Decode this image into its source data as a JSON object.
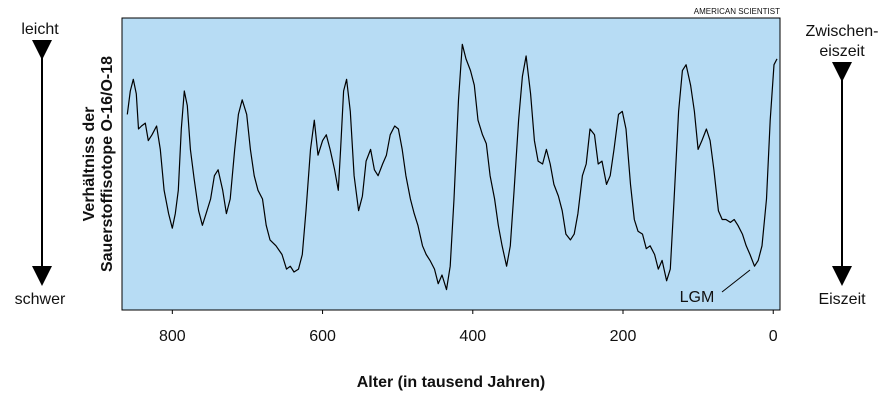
{
  "chart_data": {
    "type": "line",
    "source": "AMERICAN SCIENTIST",
    "ylabel": [
      "Verhältniss der",
      "Sauerstoffisotope O-16/O-18"
    ],
    "xlabel": "Alter (in tausend Jahren)",
    "annotations": [
      "leicht",
      "schwer",
      "Zwischen-",
      "eiszeit",
      "Eiszeit",
      "LGM"
    ],
    "xlim": [
      867,
      -9
    ],
    "xticks": [
      800,
      600,
      400,
      200,
      0
    ],
    "ylim": [
      0,
      100
    ],
    "background": "#b7dcf4",
    "series": [
      {
        "color": "#000000",
        "x": [
          860,
          856,
          852,
          848,
          845,
          841,
          836,
          832,
          827,
          821,
          816,
          811,
          805,
          800,
          796,
          792,
          788,
          784,
          780,
          776,
          771,
          765,
          760,
          755,
          749,
          744,
          739,
          733,
          728,
          723,
          717,
          712,
          707,
          701,
          696,
          691,
          686,
          680,
          675,
          670,
          662,
          654,
          648,
          643,
          638,
          632,
          627,
          622,
          616,
          611,
          606,
          600,
          595,
          590,
          584,
          579,
          576,
          572,
          568,
          563,
          558,
          552,
          547,
          542,
          536,
          531,
          526,
          520,
          515,
          510,
          504,
          499,
          494,
          489,
          483,
          478,
          473,
          467,
          462,
          457,
          451,
          446,
          441,
          435,
          430,
          425,
          419,
          414,
          409,
          403,
          398,
          393,
          387,
          382,
          377,
          371,
          366,
          361,
          355,
          350,
          345,
          339,
          334,
          329,
          323,
          318,
          313,
          307,
          302,
          297,
          292,
          286,
          281,
          276,
          270,
          265,
          260,
          254,
          249,
          244,
          238,
          233,
          228,
          222,
          217,
          212,
          206,
          201,
          196,
          190,
          185,
          180,
          174,
          169,
          164,
          158,
          153,
          148,
          142,
          137,
          132,
          126,
          121,
          116,
          110,
          105,
          100,
          95,
          89,
          84,
          79,
          73,
          68,
          63,
          57,
          52,
          47,
          41,
          36,
          31,
          25,
          20,
          15,
          9,
          4,
          -1,
          -5
        ],
        "values": [
          67,
          75,
          79,
          74,
          62,
          63,
          64,
          58,
          60,
          63,
          55,
          41,
          33,
          28,
          33,
          41,
          62,
          75,
          70,
          55,
          45,
          34,
          29,
          33,
          38,
          46,
          48,
          41,
          33,
          38,
          55,
          67,
          72,
          67,
          55,
          46,
          41,
          38,
          29,
          24,
          22,
          19,
          14,
          15,
          13,
          14,
          19,
          34,
          55,
          65,
          53,
          58,
          60,
          55,
          48,
          41,
          55,
          75,
          79,
          68,
          46,
          34,
          39,
          51,
          55,
          48,
          46,
          50,
          53,
          60,
          63,
          62,
          55,
          46,
          38,
          33,
          29,
          22,
          19,
          17,
          14,
          9,
          12,
          7,
          15,
          38,
          72,
          91,
          86,
          82,
          77,
          65,
          60,
          57,
          46,
          38,
          29,
          22,
          15,
          22,
          41,
          65,
          80,
          87,
          74,
          58,
          51,
          50,
          55,
          50,
          43,
          39,
          34,
          26,
          24,
          26,
          33,
          46,
          50,
          62,
          60,
          50,
          51,
          43,
          46,
          55,
          67,
          68,
          62,
          43,
          31,
          27,
          26,
          21,
          22,
          19,
          14,
          17,
          10,
          14,
          38,
          68,
          82,
          84,
          77,
          68,
          55,
          58,
          62,
          58,
          48,
          34,
          31,
          31,
          30,
          31,
          29,
          26,
          22,
          19,
          15,
          17,
          22,
          38,
          65,
          84,
          86
        ]
      }
    ]
  }
}
